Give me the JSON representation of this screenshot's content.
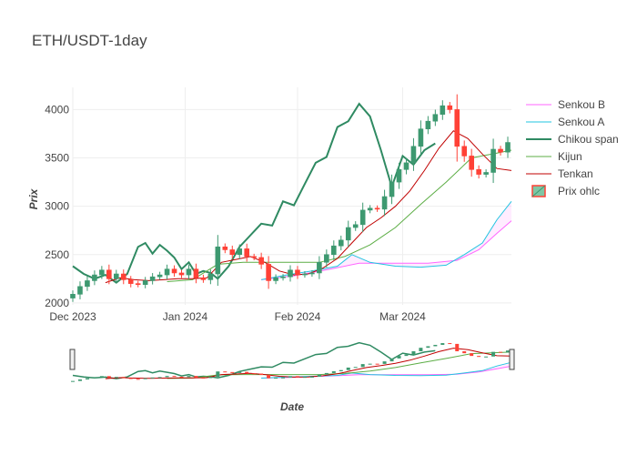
{
  "chart_data": {
    "type": "candlestick",
    "title": "ETH/USDT-1day",
    "xlabel": "Date",
    "ylabel": "Prix",
    "x_range": [
      "2023-12-01",
      "2024-03-31"
    ],
    "y_range": [
      1980,
      4230
    ],
    "y_ticks": [
      2000,
      2500,
      3000,
      3500,
      4000
    ],
    "x_ticks": [
      {
        "date": "2023-12-01",
        "label": "Dec 2023"
      },
      {
        "date": "2024-01-01",
        "label": "Jan 2024"
      },
      {
        "date": "2024-02-01",
        "label": "Feb 2024"
      },
      {
        "date": "2024-03-01",
        "label": "Mar 2024"
      }
    ],
    "legend": {
      "position": "right",
      "entries": [
        "Senkou B",
        "Senkou A",
        "Chikou span",
        "Kijun",
        "Tenkan",
        "Prix ohlc"
      ]
    },
    "colors": {
      "increasing": "#3d9970",
      "decreasing": "#ff4136",
      "senkou_b": "#ff66ff",
      "senkou_a": "#22c5e0",
      "chikou": "#2f8a62",
      "kijun": "#5cad45",
      "tenkan": "#c00000",
      "cloud_fill": "rgba(255,102,255,0.12)"
    },
    "close": [
      {
        "date": "2023-12-01",
        "value": 2090
      },
      {
        "date": "2023-12-03",
        "value": 2170
      },
      {
        "date": "2023-12-05",
        "value": 2230
      },
      {
        "date": "2023-12-07",
        "value": 2290
      },
      {
        "date": "2023-12-09",
        "value": 2340
      },
      {
        "date": "2023-12-11",
        "value": 2250
      },
      {
        "date": "2023-12-13",
        "value": 2300
      },
      {
        "date": "2023-12-15",
        "value": 2240
      },
      {
        "date": "2023-12-17",
        "value": 2200
      },
      {
        "date": "2023-12-19",
        "value": 2190
      },
      {
        "date": "2023-12-21",
        "value": 2230
      },
      {
        "date": "2023-12-23",
        "value": 2270
      },
      {
        "date": "2023-12-25",
        "value": 2290
      },
      {
        "date": "2023-12-27",
        "value": 2350
      },
      {
        "date": "2023-12-29",
        "value": 2310
      },
      {
        "date": "2023-12-31",
        "value": 2290
      },
      {
        "date": "2024-01-02",
        "value": 2350
      },
      {
        "date": "2024-01-04",
        "value": 2260
      },
      {
        "date": "2024-01-06",
        "value": 2240
      },
      {
        "date": "2024-01-08",
        "value": 2300
      },
      {
        "date": "2024-01-10",
        "value": 2580
      },
      {
        "date": "2024-01-12",
        "value": 2550
      },
      {
        "date": "2024-01-14",
        "value": 2500
      },
      {
        "date": "2024-01-16",
        "value": 2560
      },
      {
        "date": "2024-01-18",
        "value": 2480
      },
      {
        "date": "2024-01-20",
        "value": 2470
      },
      {
        "date": "2024-01-22",
        "value": 2400
      },
      {
        "date": "2024-01-24",
        "value": 2230
      },
      {
        "date": "2024-01-26",
        "value": 2260
      },
      {
        "date": "2024-01-28",
        "value": 2270
      },
      {
        "date": "2024-01-30",
        "value": 2340
      },
      {
        "date": "2024-02-01",
        "value": 2290
      },
      {
        "date": "2024-02-03",
        "value": 2300
      },
      {
        "date": "2024-02-05",
        "value": 2310
      },
      {
        "date": "2024-02-07",
        "value": 2420
      },
      {
        "date": "2024-02-09",
        "value": 2500
      },
      {
        "date": "2024-02-11",
        "value": 2590
      },
      {
        "date": "2024-02-13",
        "value": 2650
      },
      {
        "date": "2024-02-15",
        "value": 2780
      },
      {
        "date": "2024-02-17",
        "value": 2810
      },
      {
        "date": "2024-02-19",
        "value": 2960
      },
      {
        "date": "2024-02-21",
        "value": 2980
      },
      {
        "date": "2024-02-23",
        "value": 2970
      },
      {
        "date": "2024-02-25",
        "value": 3100
      },
      {
        "date": "2024-02-27",
        "value": 3250
      },
      {
        "date": "2024-02-29",
        "value": 3380
      },
      {
        "date": "2024-03-02",
        "value": 3450
      },
      {
        "date": "2024-03-04",
        "value": 3620
      },
      {
        "date": "2024-03-06",
        "value": 3800
      },
      {
        "date": "2024-03-08",
        "value": 3880
      },
      {
        "date": "2024-03-10",
        "value": 3950
      },
      {
        "date": "2024-03-12",
        "value": 4040
      },
      {
        "date": "2024-03-14",
        "value": 4000
      },
      {
        "date": "2024-03-16",
        "value": 3620
      },
      {
        "date": "2024-03-18",
        "value": 3520
      },
      {
        "date": "2024-03-20",
        "value": 3380
      },
      {
        "date": "2024-03-22",
        "value": 3330
      },
      {
        "date": "2024-03-24",
        "value": 3350
      },
      {
        "date": "2024-03-26",
        "value": 3590
      },
      {
        "date": "2024-03-28",
        "value": 3560
      },
      {
        "date": "2024-03-30",
        "value": 3660
      }
    ],
    "tenkan": [
      {
        "date": "2023-12-10",
        "value": 2210
      },
      {
        "date": "2023-12-14",
        "value": 2260
      },
      {
        "date": "2023-12-18",
        "value": 2240
      },
      {
        "date": "2023-12-22",
        "value": 2230
      },
      {
        "date": "2023-12-26",
        "value": 2240
      },
      {
        "date": "2023-12-30",
        "value": 2250
      },
      {
        "date": "2024-01-03",
        "value": 2250
      },
      {
        "date": "2024-01-07",
        "value": 2260
      },
      {
        "date": "2024-01-11",
        "value": 2420
      },
      {
        "date": "2024-01-15",
        "value": 2450
      },
      {
        "date": "2024-01-19",
        "value": 2480
      },
      {
        "date": "2024-01-23",
        "value": 2420
      },
      {
        "date": "2024-01-27",
        "value": 2330
      },
      {
        "date": "2024-01-31",
        "value": 2290
      },
      {
        "date": "2024-02-04",
        "value": 2300
      },
      {
        "date": "2024-02-08",
        "value": 2360
      },
      {
        "date": "2024-02-12",
        "value": 2460
      },
      {
        "date": "2024-02-16",
        "value": 2620
      },
      {
        "date": "2024-02-20",
        "value": 2780
      },
      {
        "date": "2024-02-24",
        "value": 2880
      },
      {
        "date": "2024-02-28",
        "value": 3000
      },
      {
        "date": "2024-03-03",
        "value": 3160
      },
      {
        "date": "2024-03-07",
        "value": 3370
      },
      {
        "date": "2024-03-11",
        "value": 3600
      },
      {
        "date": "2024-03-15",
        "value": 3780
      },
      {
        "date": "2024-03-19",
        "value": 3700
      },
      {
        "date": "2024-03-23",
        "value": 3540
      },
      {
        "date": "2024-03-27",
        "value": 3390
      },
      {
        "date": "2024-03-31",
        "value": 3370
      }
    ],
    "kijun": [
      {
        "date": "2023-12-27",
        "value": 2220
      },
      {
        "date": "2024-01-03",
        "value": 2240
      },
      {
        "date": "2024-01-10",
        "value": 2400
      },
      {
        "date": "2024-01-17",
        "value": 2420
      },
      {
        "date": "2024-01-24",
        "value": 2420
      },
      {
        "date": "2024-01-31",
        "value": 2420
      },
      {
        "date": "2024-02-07",
        "value": 2420
      },
      {
        "date": "2024-02-14",
        "value": 2480
      },
      {
        "date": "2024-02-21",
        "value": 2600
      },
      {
        "date": "2024-02-28",
        "value": 2780
      },
      {
        "date": "2024-03-06",
        "value": 3020
      },
      {
        "date": "2024-03-13",
        "value": 3250
      },
      {
        "date": "2024-03-20",
        "value": 3500
      },
      {
        "date": "2024-03-27",
        "value": 3550
      },
      {
        "date": "2024-03-31",
        "value": 3580
      }
    ],
    "senkou_a": [
      {
        "date": "2024-01-22",
        "value": 2240
      },
      {
        "date": "2024-01-29",
        "value": 2290
      },
      {
        "date": "2024-02-05",
        "value": 2330
      },
      {
        "date": "2024-02-12",
        "value": 2380
      },
      {
        "date": "2024-02-16",
        "value": 2500
      },
      {
        "date": "2024-02-21",
        "value": 2420
      },
      {
        "date": "2024-02-28",
        "value": 2380
      },
      {
        "date": "2024-03-06",
        "value": 2370
      },
      {
        "date": "2024-03-13",
        "value": 2390
      },
      {
        "date": "2024-03-18",
        "value": 2500
      },
      {
        "date": "2024-03-23",
        "value": 2620
      },
      {
        "date": "2024-03-27",
        "value": 2860
      },
      {
        "date": "2024-03-31",
        "value": 3050
      }
    ],
    "senkou_b": [
      {
        "date": "2024-01-22",
        "value": 2240
      },
      {
        "date": "2024-01-31",
        "value": 2280
      },
      {
        "date": "2024-02-10",
        "value": 2350
      },
      {
        "date": "2024-02-18",
        "value": 2410
      },
      {
        "date": "2024-02-28",
        "value": 2410
      },
      {
        "date": "2024-03-08",
        "value": 2410
      },
      {
        "date": "2024-03-16",
        "value": 2440
      },
      {
        "date": "2024-03-22",
        "value": 2550
      },
      {
        "date": "2024-03-27",
        "value": 2720
      },
      {
        "date": "2024-03-31",
        "value": 2850
      }
    ],
    "chikou": [
      {
        "date": "2023-12-01",
        "value": 2380
      },
      {
        "date": "2023-12-04",
        "value": 2300
      },
      {
        "date": "2023-12-07",
        "value": 2250
      },
      {
        "date": "2023-12-10",
        "value": 2290
      },
      {
        "date": "2023-12-13",
        "value": 2210
      },
      {
        "date": "2023-12-16",
        "value": 2300
      },
      {
        "date": "2023-12-19",
        "value": 2580
      },
      {
        "date": "2023-12-21",
        "value": 2620
      },
      {
        "date": "2023-12-23",
        "value": 2510
      },
      {
        "date": "2023-12-25",
        "value": 2600
      },
      {
        "date": "2023-12-27",
        "value": 2540
      },
      {
        "date": "2023-12-29",
        "value": 2470
      },
      {
        "date": "2023-12-31",
        "value": 2350
      },
      {
        "date": "2024-01-02",
        "value": 2420
      },
      {
        "date": "2024-01-04",
        "value": 2300
      },
      {
        "date": "2024-01-06",
        "value": 2330
      },
      {
        "date": "2024-01-08",
        "value": 2310
      },
      {
        "date": "2024-01-10",
        "value": 2250
      },
      {
        "date": "2024-01-13",
        "value": 2380
      },
      {
        "date": "2024-01-16",
        "value": 2580
      },
      {
        "date": "2024-01-19",
        "value": 2700
      },
      {
        "date": "2024-01-22",
        "value": 2820
      },
      {
        "date": "2024-01-25",
        "value": 2800
      },
      {
        "date": "2024-01-28",
        "value": 3050
      },
      {
        "date": "2024-01-31",
        "value": 3010
      },
      {
        "date": "2024-02-03",
        "value": 3230
      },
      {
        "date": "2024-02-06",
        "value": 3450
      },
      {
        "date": "2024-02-09",
        "value": 3510
      },
      {
        "date": "2024-02-12",
        "value": 3820
      },
      {
        "date": "2024-02-15",
        "value": 3880
      },
      {
        "date": "2024-02-18",
        "value": 4060
      },
      {
        "date": "2024-02-21",
        "value": 3930
      },
      {
        "date": "2024-02-24",
        "value": 3580
      },
      {
        "date": "2024-02-27",
        "value": 3200
      },
      {
        "date": "2024-03-01",
        "value": 3520
      },
      {
        "date": "2024-03-04",
        "value": 3430
      },
      {
        "date": "2024-03-07",
        "value": 3580
      },
      {
        "date": "2024-03-10",
        "value": 3650
      }
    ]
  }
}
